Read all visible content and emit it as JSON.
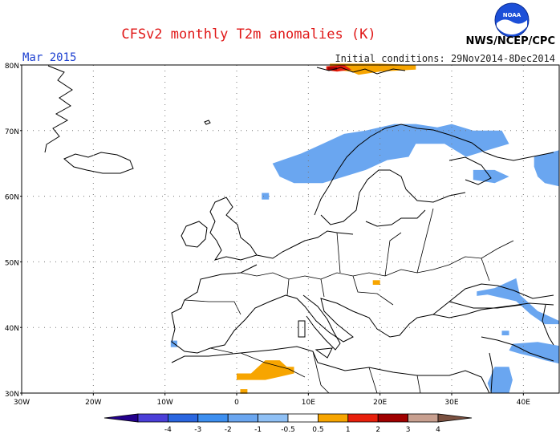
{
  "header": {
    "title": "CFSv2 monthly T2m anomalies (K)",
    "month": "Mar 2015",
    "initial_conditions": "Initial conditions: 29Nov2014-8Dec2014",
    "agency": "NWS/NCEP/CPC",
    "logo_text": "NOAA"
  },
  "map": {
    "lon_range": [
      -30,
      45
    ],
    "lat_range": [
      30,
      80
    ],
    "lon_labels": [
      {
        "lon": -30,
        "text": "30W"
      },
      {
        "lon": -20,
        "text": "20W"
      },
      {
        "lon": -10,
        "text": "10W"
      },
      {
        "lon": 0,
        "text": "0"
      },
      {
        "lon": 10,
        "text": "10E"
      },
      {
        "lon": 20,
        "text": "20E"
      },
      {
        "lon": 30,
        "text": "30E"
      },
      {
        "lon": 40,
        "text": "40E"
      }
    ],
    "lat_labels": [
      {
        "lat": 80,
        "text": "80N"
      },
      {
        "lat": 70,
        "text": "70N"
      },
      {
        "lat": 60,
        "text": "60N"
      },
      {
        "lat": 50,
        "text": "50N"
      },
      {
        "lat": 40,
        "text": "40N"
      },
      {
        "lat": 30,
        "text": "30N"
      }
    ],
    "grid": "dotted",
    "colors": {
      "land": "#ffffff",
      "ocean": "#ffffff",
      "coast": "#000000"
    },
    "anomaly_regions": [
      {
        "name": "scandinavia-cold",
        "value": -1,
        "color": "#6aa6f0",
        "points": [
          [
            5,
            65
          ],
          [
            9,
            66.5
          ],
          [
            12,
            68
          ],
          [
            15,
            69.5
          ],
          [
            18,
            70
          ],
          [
            22,
            71
          ],
          [
            25,
            71
          ],
          [
            28,
            70.5
          ],
          [
            30,
            71
          ],
          [
            33,
            70
          ],
          [
            37,
            70
          ],
          [
            38,
            68
          ],
          [
            35,
            67
          ],
          [
            32,
            66
          ],
          [
            29,
            68
          ],
          [
            25,
            68
          ],
          [
            24,
            66
          ],
          [
            21,
            65.5
          ],
          [
            18,
            64
          ],
          [
            15,
            63
          ],
          [
            12,
            62
          ],
          [
            8,
            62
          ],
          [
            6,
            63
          ]
        ]
      },
      {
        "name": "norway-coast-cold",
        "value": -1,
        "color": "#6aa6f0",
        "points": [
          [
            3.5,
            59.5
          ],
          [
            4.5,
            59.5
          ],
          [
            4.5,
            60.5
          ],
          [
            3.5,
            60.5
          ]
        ]
      },
      {
        "name": "russia-ne-cold",
        "value": -1,
        "color": "#6aa6f0",
        "points": [
          [
            33,
            64
          ],
          [
            36,
            64
          ],
          [
            38,
            63
          ],
          [
            36,
            62
          ],
          [
            33,
            62.5
          ]
        ]
      },
      {
        "name": "urals-cold",
        "value": -1,
        "color": "#6aa6f0",
        "points": [
          [
            41.5,
            66
          ],
          [
            45,
            67
          ],
          [
            45,
            61.5
          ],
          [
            43,
            62
          ],
          [
            42,
            63
          ],
          [
            41.5,
            64.5
          ]
        ]
      },
      {
        "name": "black-sea-cold",
        "value": -1,
        "color": "#6aa6f0",
        "points": [
          [
            33.5,
            45.5
          ],
          [
            36,
            46
          ],
          [
            38,
            47
          ],
          [
            39,
            47.5
          ],
          [
            39.5,
            45
          ],
          [
            41,
            43.5
          ],
          [
            42,
            42.5
          ],
          [
            44,
            41.5
          ],
          [
            45,
            41
          ],
          [
            45,
            40.5
          ],
          [
            43,
            40.5
          ],
          [
            41,
            42
          ],
          [
            39,
            44
          ],
          [
            37,
            44.5
          ],
          [
            35,
            45
          ],
          [
            33.5,
            44.8
          ]
        ]
      },
      {
        "name": "turkey-east-cold",
        "value": -1,
        "color": "#6aa6f0",
        "points": [
          [
            38.5,
            37.5
          ],
          [
            42,
            37.8
          ],
          [
            45,
            37.2
          ],
          [
            45,
            34.5
          ],
          [
            43,
            35
          ],
          [
            41.5,
            35.5
          ],
          [
            39.5,
            36
          ],
          [
            38,
            36.5
          ]
        ]
      },
      {
        "name": "levant-cold",
        "value": -1,
        "color": "#6aa6f0",
        "points": [
          [
            36,
            34
          ],
          [
            38,
            34
          ],
          [
            38.5,
            32
          ],
          [
            38,
            30
          ],
          [
            35.5,
            30
          ],
          [
            35,
            31.5
          ]
        ]
      },
      {
        "name": "portugal-cold",
        "value": -1,
        "color": "#6aa6f0",
        "points": [
          [
            -9.2,
            38
          ],
          [
            -8.3,
            38
          ],
          [
            -8.3,
            37
          ],
          [
            -9.2,
            37
          ]
        ]
      },
      {
        "name": "caspian-cold",
        "value": -1,
        "color": "#6aa6f0",
        "points": [
          [
            37,
            39.5
          ],
          [
            38,
            39.5
          ],
          [
            38,
            38.8
          ],
          [
            37,
            38.8
          ]
        ]
      },
      {
        "name": "algeria-warm",
        "value": 1,
        "color": "#f7a500",
        "points": [
          [
            0,
            33
          ],
          [
            2,
            33
          ],
          [
            3,
            34
          ],
          [
            4,
            35
          ],
          [
            6,
            35
          ],
          [
            7,
            34
          ],
          [
            8,
            34
          ],
          [
            8,
            33
          ],
          [
            6,
            32.5
          ],
          [
            4,
            32
          ],
          [
            2,
            32
          ],
          [
            0,
            32
          ]
        ]
      },
      {
        "name": "morocco-warm",
        "value": 1,
        "color": "#f7a500",
        "points": [
          [
            0.5,
            30.6
          ],
          [
            1.5,
            30.6
          ],
          [
            1.5,
            29.9
          ],
          [
            0.5,
            29.9
          ]
        ]
      },
      {
        "name": "hungary-warm",
        "value": 1,
        "color": "#f7a500",
        "points": [
          [
            19,
            47.2
          ],
          [
            20,
            47.2
          ],
          [
            20,
            46.5
          ],
          [
            19,
            46.5
          ]
        ]
      },
      {
        "name": "svalbard-warm",
        "value": 1,
        "color": "#f7a500",
        "points": [
          [
            13,
            80.2
          ],
          [
            20,
            80.2
          ],
          [
            25,
            80
          ],
          [
            25,
            79.3
          ],
          [
            20,
            79
          ],
          [
            17,
            78.5
          ],
          [
            16,
            79
          ],
          [
            13,
            79.3
          ]
        ]
      },
      {
        "name": "svalbard-hot",
        "value": 2,
        "color": "#e8200c",
        "points": [
          [
            12.5,
            79.8
          ],
          [
            15,
            80
          ],
          [
            16,
            79.3
          ],
          [
            14,
            79
          ],
          [
            12.5,
            79.2
          ]
        ]
      },
      {
        "name": "svalbard-very-hot",
        "value": 3,
        "color": "#a00000",
        "points": [
          [
            12.7,
            79.7
          ],
          [
            14,
            79.7
          ],
          [
            14,
            79.2
          ],
          [
            12.7,
            79.2
          ]
        ]
      }
    ]
  },
  "colorbar": {
    "tick_labels": [
      "-4",
      "-3",
      "-2",
      "-1",
      "-0.5",
      "0.5",
      "1",
      "2",
      "3",
      "4"
    ],
    "colors": [
      "#23008c",
      "#4b3fd8",
      "#2a66e0",
      "#3d8ff0",
      "#6aa6f0",
      "#8fc0f5",
      "#ffffff",
      "#f7a500",
      "#e8200c",
      "#a00000",
      "#c8a090",
      "#7a5040"
    ]
  }
}
